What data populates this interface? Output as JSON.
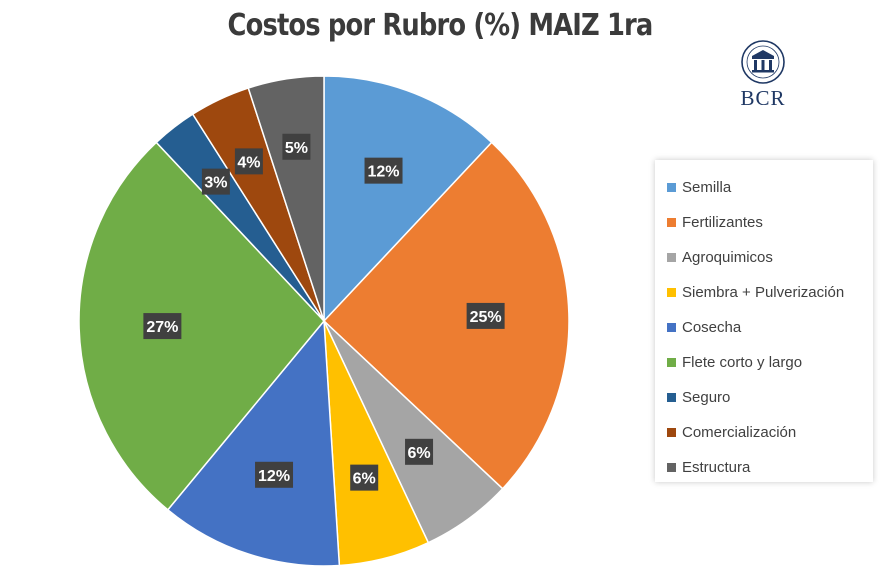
{
  "logo_text": "BCR",
  "chart_data": {
    "type": "pie",
    "title": "Costos por Rubro (%) MAIZ 1ra",
    "legend_position": "right",
    "categories": [
      "Semilla",
      "Fertilizantes",
      "Agroquimicos",
      "Siembra + Pulverización",
      "Cosecha",
      "Flete corto y largo",
      "Seguro",
      "Comercialización",
      "Estructura"
    ],
    "values": [
      12,
      25,
      6,
      6,
      12,
      27,
      3,
      4,
      5
    ],
    "labels": [
      "12%",
      "25%",
      "6%",
      "6%",
      "12%",
      "27%",
      "3%",
      "4%",
      "5%"
    ],
    "colors": [
      "#5b9bd5",
      "#ed7d31",
      "#a5a5a5",
      "#ffc000",
      "#4472c4",
      "#70ad47",
      "#255e91",
      "#9e480e",
      "#636363"
    ]
  }
}
